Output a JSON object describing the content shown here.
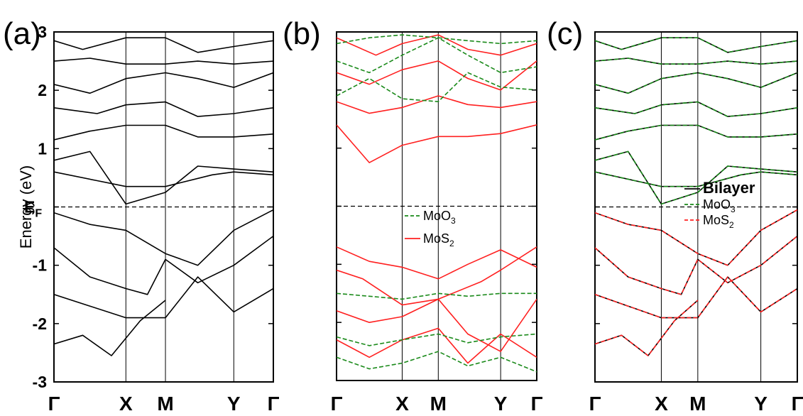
{
  "chart_data": [
    {
      "type": "line",
      "panel_label": "(a)",
      "ylabel": "Energy (eV)",
      "ylim": [
        -3,
        3
      ],
      "yticks": [
        "-3",
        "-2",
        "-1",
        "E_F",
        "1",
        "2",
        "3"
      ],
      "fermi_label": {
        "main": "E",
        "sub": "F"
      },
      "kpoints": [
        "Γ",
        "X",
        "M",
        "Y",
        "Γ"
      ],
      "kpoint_positions": [
        0,
        1,
        1.55,
        2.5,
        3.05
      ],
      "fermi_level": 0,
      "legend": [],
      "series": [
        {
          "color": "#000000",
          "dash": "solid",
          "x": [
            0,
            0.5,
            1,
            1.55,
            2,
            2.5,
            3.05
          ],
          "y": [
            -0.1,
            -0.3,
            -0.4,
            -0.8,
            -1.0,
            -0.4,
            -0.05
          ]
        },
        {
          "color": "#000000",
          "dash": "solid",
          "x": [
            0,
            0.5,
            1,
            1.3,
            1.55,
            2,
            2.5,
            3.05
          ],
          "y": [
            -0.7,
            -1.2,
            -1.4,
            -1.5,
            -0.9,
            -1.3,
            -1.0,
            -0.5
          ]
        },
        {
          "color": "#000000",
          "dash": "solid",
          "x": [
            0,
            0.5,
            1,
            1.55,
            2.0,
            2.5,
            3.05
          ],
          "y": [
            -1.5,
            -1.7,
            -1.9,
            -1.9,
            -1.2,
            -1.8,
            -1.4
          ]
        },
        {
          "color": "#000000",
          "dash": "solid",
          "x": [
            0,
            0.4,
            0.8,
            1.2,
            1.55
          ],
          "y": [
            -2.35,
            -2.2,
            -2.55,
            -1.95,
            -1.6
          ]
        },
        {
          "color": "#000000",
          "dash": "solid",
          "x": [
            0,
            0.6,
            1,
            1.55,
            2.2,
            2.5,
            3.05
          ],
          "y": [
            0.6,
            0.45,
            0.35,
            0.35,
            0.55,
            0.6,
            0.55
          ]
        },
        {
          "color": "#000000",
          "dash": "solid",
          "x": [
            0,
            0.5,
            1,
            1.55,
            2.0,
            2.5,
            3.05
          ],
          "y": [
            0.8,
            0.95,
            0.05,
            0.25,
            0.7,
            0.65,
            0.6
          ]
        },
        {
          "color": "#000000",
          "dash": "solid",
          "x": [
            0,
            0.5,
            1,
            1.55,
            2.0,
            2.5,
            3.05
          ],
          "y": [
            1.15,
            1.3,
            1.4,
            1.4,
            1.2,
            1.2,
            1.25
          ]
        },
        {
          "color": "#000000",
          "dash": "solid",
          "x": [
            0,
            0.6,
            1,
            1.55,
            2.0,
            2.5,
            3.05
          ],
          "y": [
            1.7,
            1.6,
            1.75,
            1.8,
            1.55,
            1.6,
            1.7
          ]
        },
        {
          "color": "#000000",
          "dash": "solid",
          "x": [
            0,
            0.5,
            1,
            1.55,
            2.0,
            2.5,
            3.05
          ],
          "y": [
            2.1,
            1.95,
            2.2,
            2.3,
            2.2,
            2.05,
            2.3
          ]
        },
        {
          "color": "#000000",
          "dash": "solid",
          "x": [
            0,
            0.5,
            1,
            1.55,
            2.0,
            2.5,
            3.05
          ],
          "y": [
            2.5,
            2.55,
            2.45,
            2.45,
            2.5,
            2.45,
            2.5
          ]
        },
        {
          "color": "#000000",
          "dash": "solid",
          "x": [
            0,
            0.4,
            1,
            1.55,
            2.0,
            2.5,
            3.05
          ],
          "y": [
            2.85,
            2.7,
            2.9,
            2.9,
            2.65,
            2.75,
            2.85
          ]
        }
      ]
    },
    {
      "type": "line",
      "panel_label": "(b)",
      "ylim": [
        -3,
        3
      ],
      "kpoints": [
        "Γ",
        "X",
        "M",
        "Y",
        "Γ"
      ],
      "kpoint_positions": [
        0,
        1,
        1.55,
        2.5,
        3.05
      ],
      "fermi_level": 0,
      "legend": [
        {
          "main": "MoO",
          "sub": "3",
          "color": "#1a8a1a",
          "dash": "dashed"
        },
        {
          "main": "MoS",
          "sub": "2",
          "color": "#ff2020",
          "dash": "solid"
        }
      ],
      "series": [
        {
          "color": "#ff2020",
          "dash": "solid",
          "x": [
            0,
            0.5,
            1,
            1.55,
            2.0,
            2.5,
            3.05
          ],
          "y": [
            -0.7,
            -0.95,
            -1.05,
            -1.25,
            -1.0,
            -0.75,
            -1.05
          ]
        },
        {
          "color": "#ff2020",
          "dash": "solid",
          "x": [
            0,
            0.4,
            1,
            1.55,
            2.2,
            2.5,
            3.05
          ],
          "y": [
            -1.1,
            -1.25,
            -1.7,
            -1.6,
            -1.3,
            -1.1,
            -0.7
          ]
        },
        {
          "color": "#ff2020",
          "dash": "solid",
          "x": [
            0,
            0.5,
            1,
            1.55,
            2.0,
            2.5,
            3.05
          ],
          "y": [
            -1.8,
            -2.0,
            -1.9,
            -1.6,
            -2.2,
            -2.5,
            -1.6
          ]
        },
        {
          "color": "#ff2020",
          "dash": "solid",
          "x": [
            0,
            0.5,
            1,
            1.55,
            2.0,
            2.5,
            3.05
          ],
          "y": [
            -2.3,
            -2.6,
            -2.3,
            -2.1,
            -2.7,
            -2.2,
            -2.6
          ]
        },
        {
          "color": "#ff2020",
          "dash": "solid",
          "x": [
            0,
            0.5,
            1,
            1.55,
            2.0,
            2.5,
            3.05
          ],
          "y": [
            1.4,
            0.75,
            1.05,
            1.2,
            1.2,
            1.25,
            1.4
          ]
        },
        {
          "color": "#ff2020",
          "dash": "solid",
          "x": [
            0,
            0.5,
            1,
            1.55,
            2.0,
            2.5,
            3.05
          ],
          "y": [
            1.8,
            1.6,
            1.7,
            1.9,
            1.75,
            1.7,
            1.8
          ]
        },
        {
          "color": "#ff2020",
          "dash": "solid",
          "x": [
            0,
            0.5,
            1,
            1.55,
            2.0,
            2.5,
            3.05
          ],
          "y": [
            2.3,
            2.1,
            2.35,
            2.5,
            2.2,
            2.0,
            2.5
          ]
        },
        {
          "color": "#ff2020",
          "dash": "solid",
          "x": [
            0,
            0.6,
            1,
            1.55,
            2.0,
            2.5,
            3.05
          ],
          "y": [
            2.9,
            2.6,
            2.8,
            2.95,
            2.7,
            2.6,
            2.8
          ]
        },
        {
          "color": "#1a8a1a",
          "dash": "dashed",
          "x": [
            0,
            0.5,
            1,
            1.55,
            2.0,
            2.5,
            3.05
          ],
          "y": [
            -1.5,
            -1.55,
            -1.6,
            -1.5,
            -1.55,
            -1.5,
            -1.5
          ]
        },
        {
          "color": "#1a8a1a",
          "dash": "dashed",
          "x": [
            0,
            0.5,
            1,
            1.55,
            2.0,
            2.5,
            3.05
          ],
          "y": [
            -2.25,
            -2.4,
            -2.3,
            -2.2,
            -2.35,
            -2.25,
            -2.2
          ]
        },
        {
          "color": "#1a8a1a",
          "dash": "dashed",
          "x": [
            0,
            0.5,
            1,
            1.55,
            2.0,
            2.5,
            3.05
          ],
          "y": [
            -2.6,
            -2.8,
            -2.7,
            -2.5,
            -2.75,
            -2.6,
            -2.85
          ]
        },
        {
          "color": "#1a8a1a",
          "dash": "dashed",
          "x": [
            0,
            0.5,
            1,
            1.55,
            2.0,
            2.5,
            3.05
          ],
          "y": [
            1.9,
            2.2,
            1.85,
            1.8,
            2.3,
            2.05,
            2.0
          ]
        },
        {
          "color": "#1a8a1a",
          "dash": "dashed",
          "x": [
            0,
            0.5,
            1,
            1.55,
            2.0,
            2.5,
            3.05
          ],
          "y": [
            2.5,
            2.3,
            2.6,
            2.9,
            2.6,
            2.3,
            2.4
          ]
        },
        {
          "color": "#1a8a1a",
          "dash": "dashed",
          "x": [
            0,
            0.5,
            1,
            1.55,
            2.0,
            2.5,
            3.05
          ],
          "y": [
            2.8,
            2.9,
            2.95,
            2.9,
            2.85,
            2.8,
            2.85
          ]
        }
      ]
    },
    {
      "type": "line",
      "panel_label": "(c)",
      "ylim": [
        -3,
        3
      ],
      "kpoints": [
        "Γ",
        "X",
        "M",
        "Y",
        "Γ"
      ],
      "kpoint_positions": [
        0,
        1,
        1.55,
        2.5,
        3.05
      ],
      "fermi_level": 0,
      "legend": [
        {
          "main": "Bilayer",
          "sub": "",
          "color": "#000000",
          "dash": "solid",
          "bold": true
        },
        {
          "main": "MoO",
          "sub": "3",
          "color": "#1a8a1a",
          "dash": "dashed"
        },
        {
          "main": "MoS",
          "sub": "2",
          "color": "#ff2020",
          "dash": "dashed"
        }
      ],
      "series": [
        {
          "color": "#000000",
          "dash": "solid",
          "x": [
            0,
            0.5,
            1,
            1.55,
            2,
            2.5,
            3.05
          ],
          "y": [
            -0.1,
            -0.3,
            -0.4,
            -0.8,
            -1.0,
            -0.4,
            -0.05
          ]
        },
        {
          "color": "#000000",
          "dash": "solid",
          "x": [
            0,
            0.5,
            1,
            1.3,
            1.55,
            2,
            2.5,
            3.05
          ],
          "y": [
            -0.7,
            -1.2,
            -1.4,
            -1.5,
            -0.9,
            -1.3,
            -1.0,
            -0.5
          ]
        },
        {
          "color": "#000000",
          "dash": "solid",
          "x": [
            0,
            0.5,
            1,
            1.55,
            2.0,
            2.5,
            3.05
          ],
          "y": [
            -1.5,
            -1.7,
            -1.9,
            -1.9,
            -1.2,
            -1.8,
            -1.4
          ]
        },
        {
          "color": "#000000",
          "dash": "solid",
          "x": [
            0,
            0.4,
            0.8,
            1.2,
            1.55
          ],
          "y": [
            -2.35,
            -2.2,
            -2.55,
            -1.95,
            -1.6
          ]
        },
        {
          "color": "#000000",
          "dash": "solid",
          "x": [
            0,
            0.6,
            1,
            1.55,
            2.2,
            2.5,
            3.05
          ],
          "y": [
            0.6,
            0.45,
            0.35,
            0.35,
            0.55,
            0.6,
            0.55
          ]
        },
        {
          "color": "#000000",
          "dash": "solid",
          "x": [
            0,
            0.5,
            1,
            1.55,
            2.0,
            2.5,
            3.05
          ],
          "y": [
            0.8,
            0.95,
            0.05,
            0.25,
            0.7,
            0.65,
            0.6
          ]
        },
        {
          "color": "#000000",
          "dash": "solid",
          "x": [
            0,
            0.5,
            1,
            1.55,
            2.0,
            2.5,
            3.05
          ],
          "y": [
            1.15,
            1.3,
            1.4,
            1.4,
            1.2,
            1.2,
            1.25
          ]
        },
        {
          "color": "#000000",
          "dash": "solid",
          "x": [
            0,
            0.6,
            1,
            1.55,
            2.0,
            2.5,
            3.05
          ],
          "y": [
            1.7,
            1.6,
            1.75,
            1.8,
            1.55,
            1.6,
            1.7
          ]
        },
        {
          "color": "#000000",
          "dash": "solid",
          "x": [
            0,
            0.5,
            1,
            1.55,
            2.0,
            2.5,
            3.05
          ],
          "y": [
            2.1,
            1.95,
            2.2,
            2.3,
            2.2,
            2.05,
            2.3
          ]
        },
        {
          "color": "#000000",
          "dash": "solid",
          "x": [
            0,
            0.5,
            1,
            1.55,
            2.0,
            2.5,
            3.05
          ],
          "y": [
            2.5,
            2.55,
            2.45,
            2.45,
            2.5,
            2.45,
            2.5
          ]
        },
        {
          "color": "#000000",
          "dash": "solid",
          "x": [
            0,
            0.4,
            1,
            1.55,
            2.0,
            2.5,
            3.05
          ],
          "y": [
            2.85,
            2.7,
            2.9,
            2.9,
            2.65,
            2.75,
            2.85
          ]
        },
        {
          "color": "#ff2020",
          "dash": "dashed",
          "x": [
            0,
            0.5,
            1,
            1.55,
            2,
            2.5,
            3.05
          ],
          "y": [
            -0.1,
            -0.3,
            -0.4,
            -0.8,
            -1.0,
            -0.4,
            -0.05
          ]
        },
        {
          "color": "#ff2020",
          "dash": "dashed",
          "x": [
            0,
            0.5,
            1,
            1.3,
            1.55,
            2,
            2.5,
            3.05
          ],
          "y": [
            -0.7,
            -1.2,
            -1.4,
            -1.5,
            -0.9,
            -1.3,
            -1.0,
            -0.5
          ]
        },
        {
          "color": "#ff2020",
          "dash": "dashed",
          "x": [
            0,
            0.5,
            1,
            1.55,
            2.0,
            2.5,
            3.05
          ],
          "y": [
            -1.5,
            -1.7,
            -1.9,
            -1.9,
            -1.2,
            -1.8,
            -1.4
          ]
        },
        {
          "color": "#ff2020",
          "dash": "dashed",
          "x": [
            0,
            0.4,
            0.8,
            1.2,
            1.55
          ],
          "y": [
            -2.35,
            -2.2,
            -2.55,
            -1.95,
            -1.6
          ]
        },
        {
          "color": "#1a8a1a",
          "dash": "dashed",
          "x": [
            0,
            0.6,
            1,
            1.55,
            2.2,
            2.5,
            3.05
          ],
          "y": [
            0.6,
            0.45,
            0.35,
            0.35,
            0.55,
            0.6,
            0.55
          ]
        },
        {
          "color": "#1a8a1a",
          "dash": "dashed",
          "x": [
            0,
            0.5,
            1,
            1.55,
            2.0,
            2.5,
            3.05
          ],
          "y": [
            0.8,
            0.95,
            0.05,
            0.25,
            0.7,
            0.65,
            0.6
          ]
        },
        {
          "color": "#1a8a1a",
          "dash": "dashed",
          "x": [
            0,
            0.5,
            1,
            1.55,
            2.0,
            2.5,
            3.05
          ],
          "y": [
            1.15,
            1.3,
            1.4,
            1.4,
            1.2,
            1.2,
            1.25
          ]
        },
        {
          "color": "#1a8a1a",
          "dash": "dashed",
          "x": [
            0,
            0.6,
            1,
            1.55,
            2.0,
            2.5,
            3.05
          ],
          "y": [
            1.7,
            1.6,
            1.75,
            1.8,
            1.55,
            1.6,
            1.7
          ]
        },
        {
          "color": "#1a8a1a",
          "dash": "dashed",
          "x": [
            0,
            0.5,
            1,
            1.55,
            2.0,
            2.5,
            3.05
          ],
          "y": [
            2.1,
            1.95,
            2.2,
            2.3,
            2.2,
            2.05,
            2.3
          ]
        },
        {
          "color": "#1a8a1a",
          "dash": "dashed",
          "x": [
            0,
            0.5,
            1,
            1.55,
            2.0,
            2.5,
            3.05
          ],
          "y": [
            2.5,
            2.55,
            2.45,
            2.45,
            2.5,
            2.45,
            2.5
          ]
        },
        {
          "color": "#1a8a1a",
          "dash": "dashed",
          "x": [
            0,
            0.4,
            1,
            1.55,
            2.0,
            2.5,
            3.05
          ],
          "y": [
            2.85,
            2.7,
            2.9,
            2.9,
            2.65,
            2.75,
            2.85
          ]
        }
      ]
    }
  ]
}
